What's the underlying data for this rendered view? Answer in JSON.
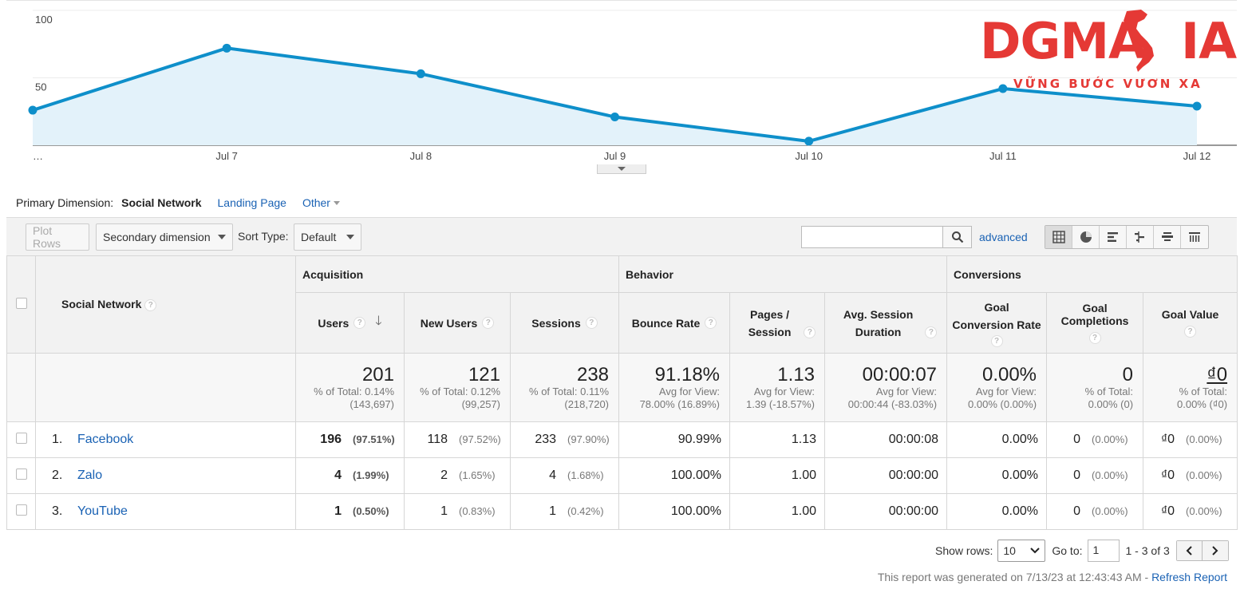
{
  "chart_data": {
    "type": "area",
    "x": [
      "…",
      "Jul 7",
      "Jul 8",
      "Jul 9",
      "Jul 10",
      "Jul 11",
      "Jul 12"
    ],
    "series": [
      {
        "name": "",
        "values": [
          26,
          72,
          53,
          21,
          3,
          42,
          29
        ]
      }
    ],
    "yticks": [
      "100",
      "50"
    ],
    "ylim": [
      0,
      100
    ],
    "grid": true,
    "color": "#0e8fca",
    "fill": "#e3f2fa"
  },
  "logo": {
    "main": "DGMA",
    "main2": "IA",
    "tagline": "VỮNG BƯỚC VƯƠN XA",
    "color": "#e53935"
  },
  "dimension": {
    "label": "Primary Dimension:",
    "active": "Social Network",
    "links": [
      "Landing Page",
      "Other"
    ]
  },
  "toolbar": {
    "plot_rows": "Plot Rows",
    "secondary_dimension": "Secondary dimension",
    "sort_label": "Sort Type:",
    "sort_value": "Default",
    "search_placeholder": "",
    "advanced": "advanced",
    "search_icon": "search-icon",
    "views": [
      "table-view-icon",
      "pie-view-icon",
      "performance-view-icon",
      "comparison-view-icon",
      "term-cloud-icon",
      "pivot-view-icon"
    ]
  },
  "table": {
    "groups": [
      "Acquisition",
      "Behavior",
      "Conversions"
    ],
    "dim_header": "Social Network",
    "columns": [
      "Users",
      "New Users",
      "Sessions",
      "Bounce Rate",
      "Pages / Session",
      "Avg. Session Duration",
      "Goal Conversion Rate",
      "Goal Completions",
      "Goal Value"
    ],
    "totals": [
      {
        "big": "201",
        "l1": "% of Total: 0.14%",
        "l2": "(143,697)"
      },
      {
        "big": "121",
        "l1": "% of Total: 0.12%",
        "l2": "(99,257)"
      },
      {
        "big": "238",
        "l1": "% of Total: 0.11%",
        "l2": "(218,720)"
      },
      {
        "big": "91.18%",
        "l1": "Avg for View:",
        "l2": "78.00% (16.89%)"
      },
      {
        "big": "1.13",
        "l1": "Avg for View:",
        "l2": "1.39 (-18.57%)"
      },
      {
        "big": "00:00:07",
        "l1": "Avg for View:",
        "l2": "00:00:44 (-83.03%)"
      },
      {
        "big": "0.00%",
        "l1": "Avg for View:",
        "l2": "0.00% (0.00%)"
      },
      {
        "big": "0",
        "l1": "% of Total:",
        "l2": "0.00% (0)"
      },
      {
        "big": "₫0",
        "l1": "% of Total:",
        "l2": "0.00% (₫0)"
      }
    ],
    "rows": [
      {
        "idx": "1.",
        "name": "Facebook",
        "users": "196",
        "users_pct": "(97.51%)",
        "new": "118",
        "new_pct": "(97.52%)",
        "sessions": "233",
        "sessions_pct": "(97.90%)",
        "bounce": "90.99%",
        "pages": "1.13",
        "duration": "00:00:08",
        "conv": "0.00%",
        "completions": "0",
        "completions_pct": "(0.00%)",
        "value": "₫0",
        "value_pct": "(0.00%)"
      },
      {
        "idx": "2.",
        "name": "Zalo",
        "users": "4",
        "users_pct": "(1.99%)",
        "new": "2",
        "new_pct": "(1.65%)",
        "sessions": "4",
        "sessions_pct": "(1.68%)",
        "bounce": "100.00%",
        "pages": "1.00",
        "duration": "00:00:00",
        "conv": "0.00%",
        "completions": "0",
        "completions_pct": "(0.00%)",
        "value": "₫0",
        "value_pct": "(0.00%)"
      },
      {
        "idx": "3.",
        "name": "YouTube",
        "users": "1",
        "users_pct": "(0.50%)",
        "new": "1",
        "new_pct": "(0.83%)",
        "sessions": "1",
        "sessions_pct": "(0.42%)",
        "bounce": "100.00%",
        "pages": "1.00",
        "duration": "00:00:00",
        "conv": "0.00%",
        "completions": "0",
        "completions_pct": "(0.00%)",
        "value": "₫0",
        "value_pct": "(0.00%)"
      }
    ]
  },
  "footer": {
    "show_rows": "Show rows:",
    "rows_value": "10",
    "goto": "Go to:",
    "goto_value": "1",
    "range": "1 - 3 of 3",
    "report_note": "This report was generated on 7/13/23 at 12:43:43 AM - ",
    "refresh": "Refresh Report"
  }
}
